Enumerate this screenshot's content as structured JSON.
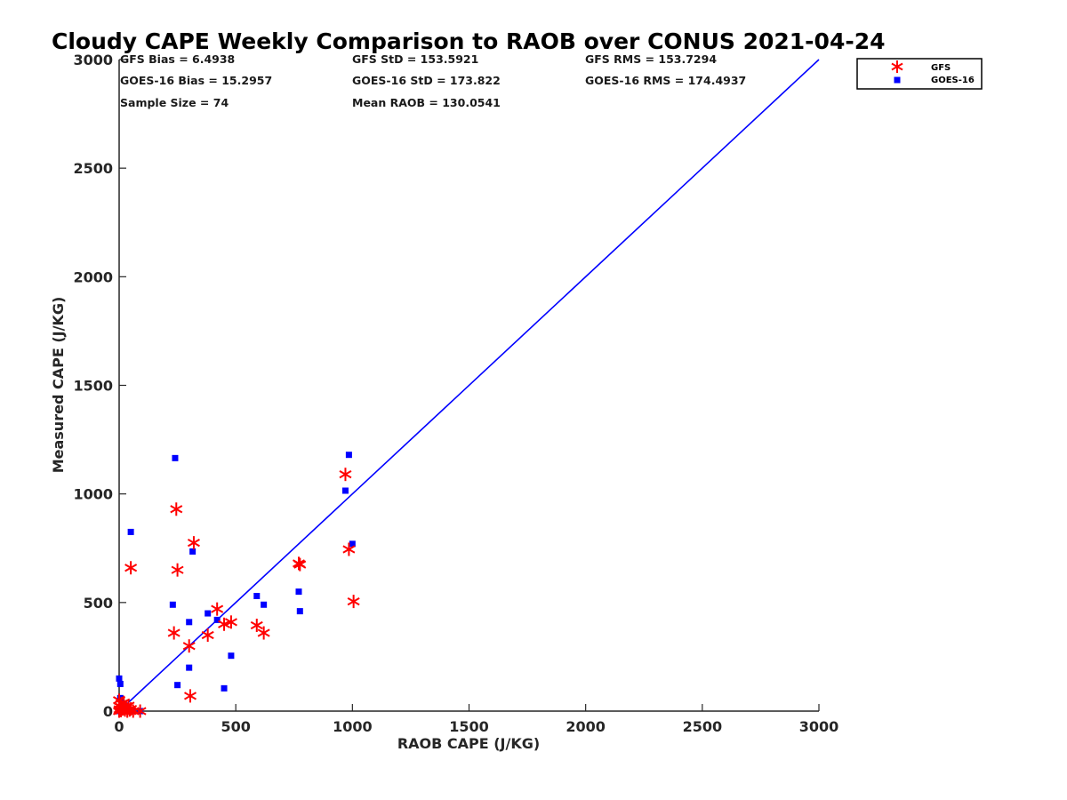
{
  "chart_data": {
    "type": "scatter",
    "title": "Cloudy CAPE Weekly Comparison to RAOB over CONUS 2021-04-24",
    "xlabel": "RAOB CAPE (J/KG)",
    "ylabel": "Measured CAPE (J/KG)",
    "xlim": [
      0,
      3000
    ],
    "ylim": [
      0,
      3000
    ],
    "xticks": [
      0,
      500,
      1000,
      1500,
      2000,
      2500,
      3000
    ],
    "yticks": [
      0,
      500,
      1000,
      1500,
      2000,
      2500,
      3000
    ],
    "grid": false,
    "legend_position": "top-right (outside plot)",
    "reference_line": {
      "x": [
        0,
        3000
      ],
      "y": [
        0,
        3000
      ],
      "color": "#0000ff"
    },
    "stats": [
      "GFS Bias = 6.4938",
      "GFS StD = 153.5921",
      "GFS RMS = 153.7294",
      "GOES-16 Bias = 15.2957",
      "GOES-16 StD = 173.822",
      "GOES-16 RMS = 174.4937",
      "Sample Size = 74",
      "Mean RAOB = 130.0541"
    ],
    "series": [
      {
        "name": "GFS",
        "marker": "asterisk",
        "color": "#ff0000",
        "points": [
          [
            0,
            50
          ],
          [
            5,
            20
          ],
          [
            10,
            35
          ],
          [
            15,
            10
          ],
          [
            20,
            40
          ],
          [
            25,
            5
          ],
          [
            30,
            15
          ],
          [
            35,
            0
          ],
          [
            40,
            25
          ],
          [
            45,
            5
          ],
          [
            50,
            10
          ],
          [
            60,
            0
          ],
          [
            90,
            0
          ],
          [
            0,
            0
          ],
          [
            2,
            8
          ],
          [
            8,
            2
          ],
          [
            12,
            18
          ],
          [
            18,
            12
          ],
          [
            50,
            660
          ],
          [
            235,
            360
          ],
          [
            245,
            930
          ],
          [
            250,
            650
          ],
          [
            300,
            300
          ],
          [
            305,
            70
          ],
          [
            320,
            775
          ],
          [
            380,
            350
          ],
          [
            420,
            470
          ],
          [
            450,
            400
          ],
          [
            480,
            410
          ],
          [
            590,
            395
          ],
          [
            620,
            360
          ],
          [
            770,
            680
          ],
          [
            775,
            675
          ],
          [
            970,
            1090
          ],
          [
            985,
            745
          ],
          [
            1005,
            505
          ]
        ]
      },
      {
        "name": "GOES-16",
        "marker": "square",
        "color": "#0000ff",
        "points": [
          [
            0,
            150
          ],
          [
            5,
            125
          ],
          [
            10,
            40
          ],
          [
            15,
            20
          ],
          [
            20,
            35
          ],
          [
            25,
            10
          ],
          [
            30,
            5
          ],
          [
            35,
            15
          ],
          [
            40,
            0
          ],
          [
            45,
            0
          ],
          [
            50,
            5
          ],
          [
            60,
            0
          ],
          [
            0,
            0
          ],
          [
            5,
            60
          ],
          [
            12,
            10
          ],
          [
            90,
            0
          ],
          [
            50,
            825
          ],
          [
            230,
            490
          ],
          [
            240,
            1165
          ],
          [
            250,
            120
          ],
          [
            300,
            410
          ],
          [
            300,
            200
          ],
          [
            315,
            735
          ],
          [
            380,
            450
          ],
          [
            420,
            420
          ],
          [
            450,
            105
          ],
          [
            480,
            255
          ],
          [
            590,
            530
          ],
          [
            620,
            490
          ],
          [
            770,
            550
          ],
          [
            775,
            460
          ],
          [
            970,
            1015
          ],
          [
            985,
            1180
          ],
          [
            1000,
            770
          ]
        ]
      }
    ]
  }
}
